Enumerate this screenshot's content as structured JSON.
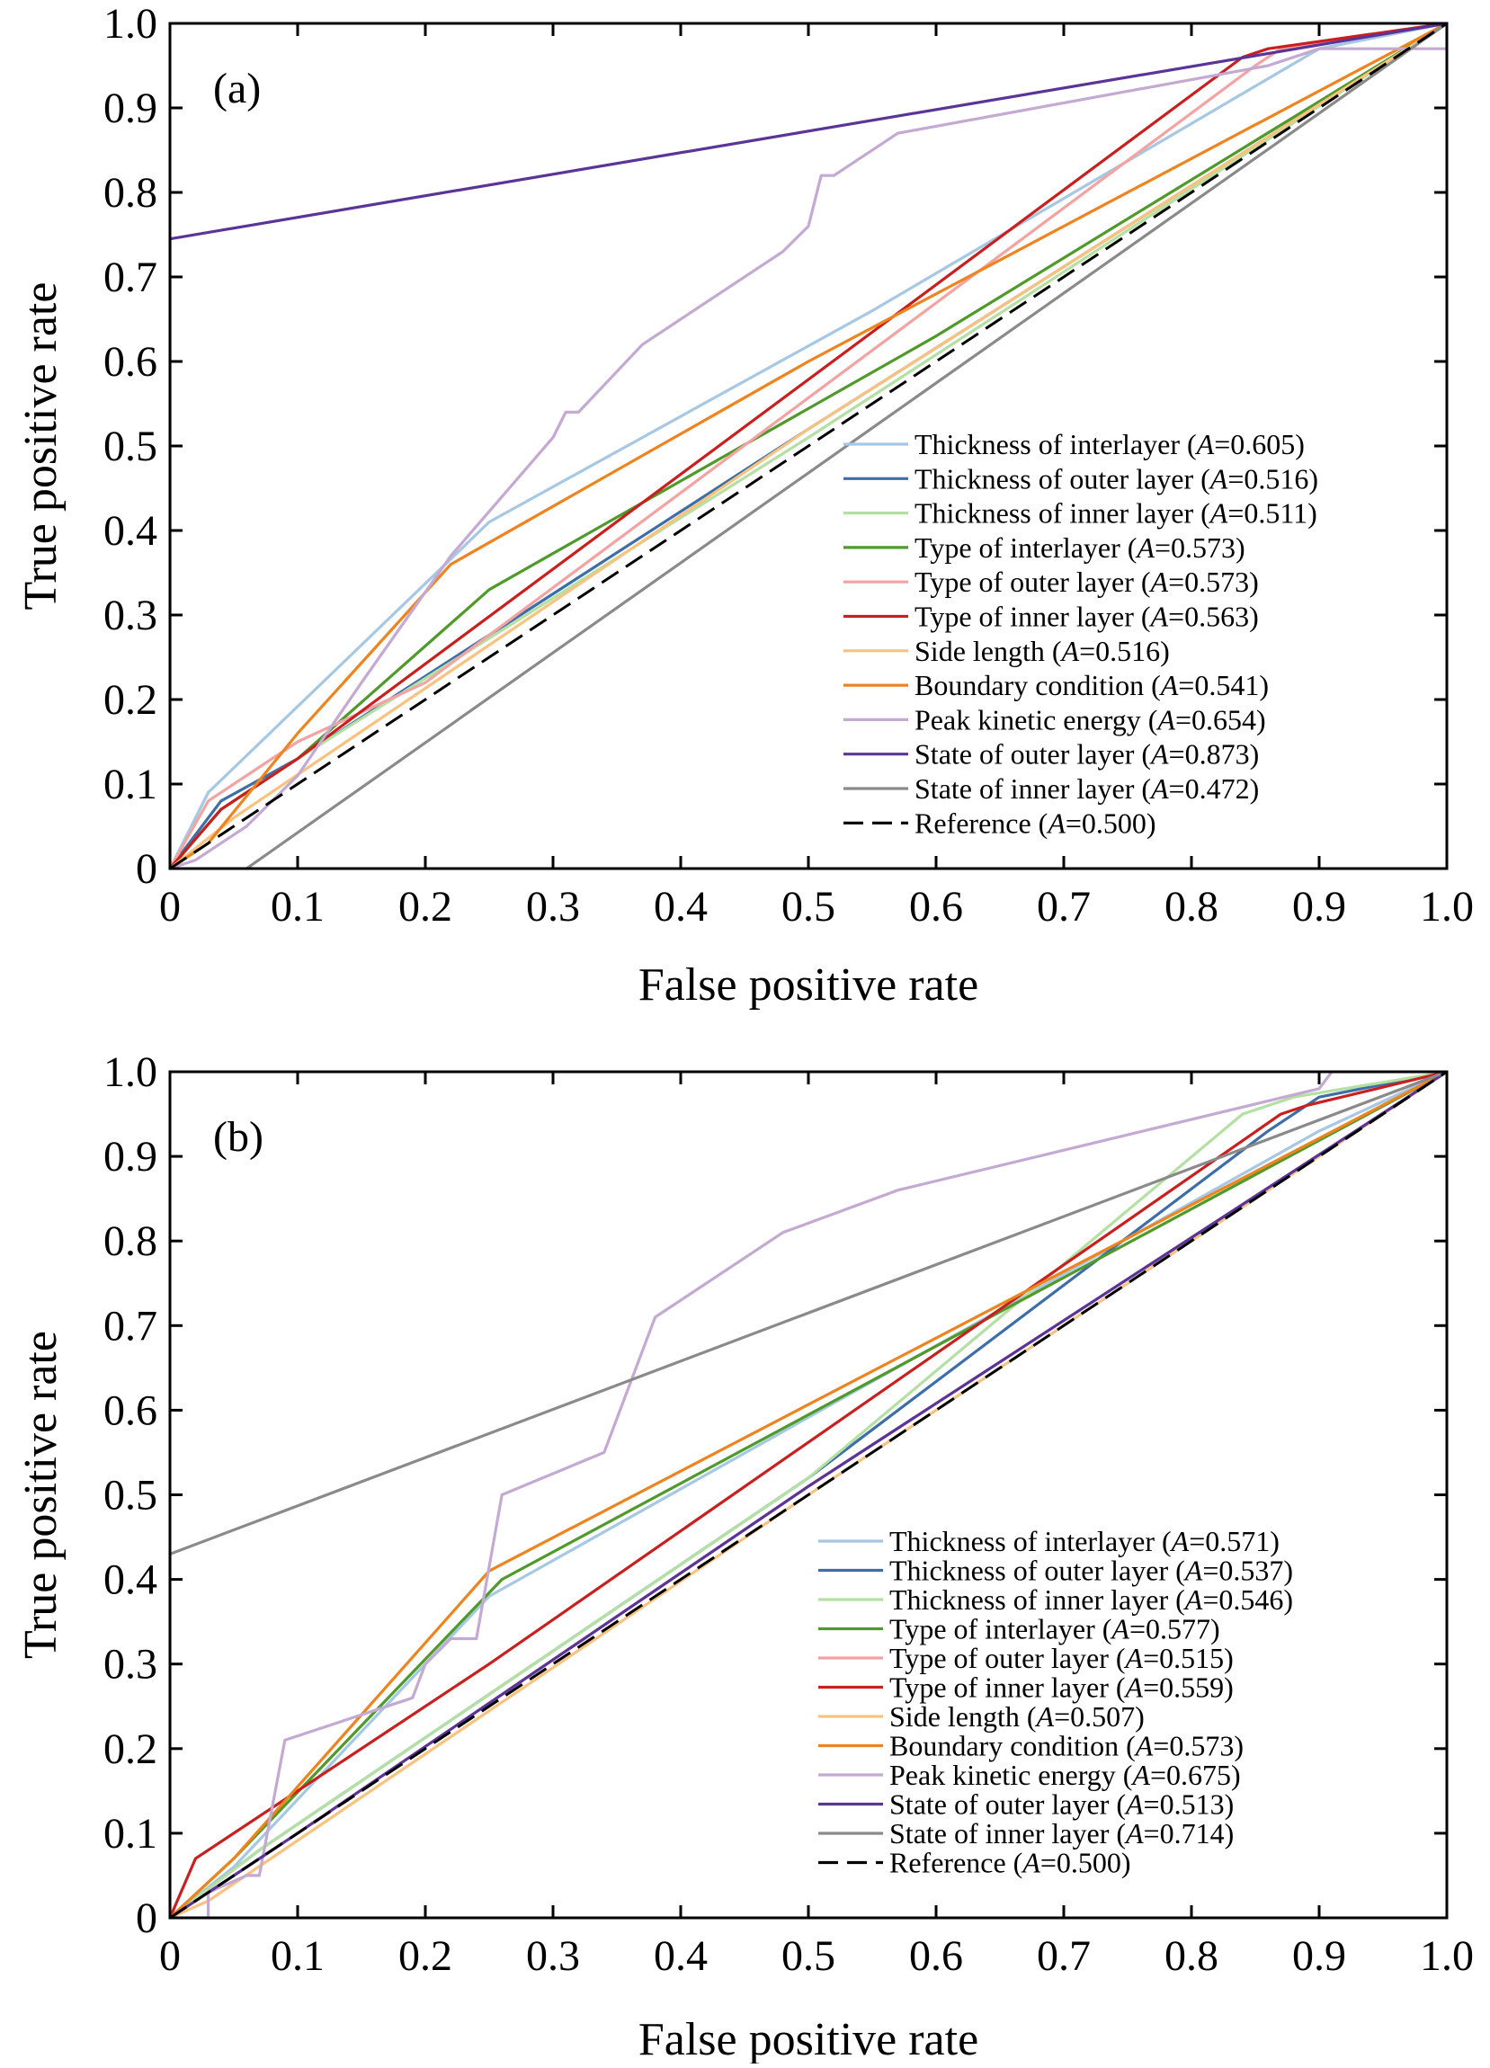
{
  "chart_data": [
    {
      "type": "line",
      "panel_label": "(a)",
      "xlabel": "False positive rate",
      "ylabel": "True positive rate",
      "xlim": [
        0,
        1
      ],
      "ylim": [
        0,
        1
      ],
      "x_ticks": [
        "0",
        "0.1",
        "0.2",
        "0.3",
        "0.4",
        "0.5",
        "0.6",
        "0.7",
        "0.8",
        "0.9",
        "1.0"
      ],
      "y_ticks": [
        "0",
        "0.1",
        "0.2",
        "0.3",
        "0.4",
        "0.5",
        "0.6",
        "0.7",
        "0.8",
        "0.9",
        "1.0"
      ],
      "grid": false,
      "legend_position": "bottom-right",
      "series": [
        {
          "name": "Thickness of interlayer",
          "area": "0.605",
          "color": "#a6c8e3",
          "points": [
            [
              0,
              0
            ],
            [
              0.03,
              0.09
            ],
            [
              0.25,
              0.41
            ],
            [
              0.55,
              0.66
            ],
            [
              0.9,
              0.97
            ],
            [
              1,
              1
            ]
          ]
        },
        {
          "name": "Thickness of outer layer",
          "area": "0.516",
          "color": "#3e6ea8",
          "points": [
            [
              0,
              0
            ],
            [
              0.04,
              0.08
            ],
            [
              0.1,
              0.13
            ],
            [
              0.5,
              0.52
            ],
            [
              1,
              1
            ]
          ]
        },
        {
          "name": "Thickness of inner layer",
          "area": "0.511",
          "color": "#b4e0a4",
          "points": [
            [
              0,
              0
            ],
            [
              0.04,
              0.07
            ],
            [
              0.1,
              0.13
            ],
            [
              0.5,
              0.51
            ],
            [
              1,
              1
            ]
          ]
        },
        {
          "name": "Type of interlayer",
          "area": "0.573",
          "color": "#4f9a2a",
          "points": [
            [
              0,
              0
            ],
            [
              0.04,
              0.07
            ],
            [
              0.1,
              0.13
            ],
            [
              0.25,
              0.33
            ],
            [
              0.6,
              0.63
            ],
            [
              1,
              1
            ]
          ]
        },
        {
          "name": "Type of outer layer",
          "area": "0.573",
          "color": "#f4a3a3",
          "points": [
            [
              0,
              0
            ],
            [
              0.03,
              0.08
            ],
            [
              0.1,
              0.15
            ],
            [
              0.2,
              0.22
            ],
            [
              0.85,
              0.95
            ],
            [
              0.87,
              0.97
            ],
            [
              1,
              1
            ]
          ]
        },
        {
          "name": "Type of inner layer",
          "area": "0.563",
          "color": "#c8201f",
          "points": [
            [
              0,
              0
            ],
            [
              0.04,
              0.07
            ],
            [
              0.1,
              0.13
            ],
            [
              0.84,
              0.96
            ],
            [
              0.86,
              0.97
            ],
            [
              1,
              1
            ]
          ]
        },
        {
          "name": "Side length",
          "area": "0.516",
          "color": "#f9c27e",
          "points": [
            [
              0,
              0
            ],
            [
              0.05,
              0.06
            ],
            [
              0.5,
              0.52
            ],
            [
              1,
              1
            ]
          ]
        },
        {
          "name": "Boundary condition",
          "area": "0.541",
          "color": "#ee8420",
          "points": [
            [
              0,
              0
            ],
            [
              0.03,
              0.03
            ],
            [
              0.1,
              0.16
            ],
            [
              0.22,
              0.36
            ],
            [
              0.5,
              0.6
            ],
            [
              1,
              1
            ]
          ]
        },
        {
          "name": "Peak kinetic energy",
          "area": "0.654",
          "color": "#c4a9d3",
          "points": [
            [
              0,
              0
            ],
            [
              0.02,
              0.01
            ],
            [
              0.06,
              0.05
            ],
            [
              0.1,
              0.11
            ],
            [
              0.15,
              0.22
            ],
            [
              0.22,
              0.37
            ],
            [
              0.3,
              0.51
            ],
            [
              0.31,
              0.54
            ],
            [
              0.32,
              0.54
            ],
            [
              0.37,
              0.62
            ],
            [
              0.48,
              0.73
            ],
            [
              0.5,
              0.76
            ],
            [
              0.51,
              0.82
            ],
            [
              0.52,
              0.82
            ],
            [
              0.57,
              0.87
            ],
            [
              0.86,
              0.95
            ],
            [
              0.9,
              0.97
            ],
            [
              1,
              0.97
            ],
            [
              1,
              1
            ]
          ]
        },
        {
          "name": "State of outer layer",
          "area": "0.873",
          "color": "#5b3497",
          "points": [
            [
              0,
              0
            ],
            [
              0,
              0.745
            ],
            [
              1,
              1
            ]
          ]
        },
        {
          "name": "State of inner layer",
          "area": "0.472",
          "color": "#8a8a8a",
          "points": [
            [
              0.06,
              0
            ],
            [
              1,
              1
            ]
          ]
        },
        {
          "name": "Reference",
          "area": "0.500",
          "color": "#000000",
          "dashed": true,
          "points": [
            [
              0,
              0
            ],
            [
              1,
              1
            ]
          ]
        }
      ]
    },
    {
      "type": "line",
      "panel_label": "(b)",
      "xlabel": "False positive rate",
      "ylabel": "True positive rate",
      "xlim": [
        0,
        1
      ],
      "ylim": [
        0,
        1
      ],
      "x_ticks": [
        "0",
        "0.1",
        "0.2",
        "0.3",
        "0.4",
        "0.5",
        "0.6",
        "0.7",
        "0.8",
        "0.9",
        "1.0"
      ],
      "y_ticks": [
        "0",
        "0.1",
        "0.2",
        "0.3",
        "0.4",
        "0.5",
        "0.6",
        "0.7",
        "0.8",
        "0.9",
        "1.0"
      ],
      "grid": false,
      "legend_position": "bottom-right",
      "series": [
        {
          "name": "Thickness of interlayer",
          "area": "0.571",
          "color": "#a6c8e3",
          "points": [
            [
              0,
              0
            ],
            [
              0.05,
              0.06
            ],
            [
              0.25,
              0.38
            ],
            [
              0.9,
              0.93
            ],
            [
              1,
              1
            ]
          ]
        },
        {
          "name": "Thickness of outer layer",
          "area": "0.537",
          "color": "#3e6ea8",
          "points": [
            [
              0,
              0
            ],
            [
              0.07,
              0.08
            ],
            [
              0.5,
              0.52
            ],
            [
              0.86,
              0.93
            ],
            [
              0.9,
              0.97
            ],
            [
              1,
              1
            ]
          ]
        },
        {
          "name": "Thickness of inner layer",
          "area": "0.546",
          "color": "#b4e0a4",
          "points": [
            [
              0,
              0
            ],
            [
              0.07,
              0.08
            ],
            [
              0.5,
              0.52
            ],
            [
              0.84,
              0.95
            ],
            [
              0.88,
              0.97
            ],
            [
              1,
              1
            ]
          ]
        },
        {
          "name": "Type of interlayer",
          "area": "0.577",
          "color": "#4f9a2a",
          "points": [
            [
              0,
              0
            ],
            [
              0.05,
              0.07
            ],
            [
              0.26,
              0.4
            ],
            [
              1,
              1
            ]
          ]
        },
        {
          "name": "Type of outer layer",
          "area": "0.515",
          "color": "#f4a3a3",
          "points": [
            [
              0,
              0
            ],
            [
              0.1,
              0.1
            ],
            [
              0.5,
              0.51
            ],
            [
              1,
              1
            ]
          ]
        },
        {
          "name": "Type of inner layer",
          "area": "0.559",
          "color": "#c8201f",
          "points": [
            [
              0,
              0
            ],
            [
              0.02,
              0.07
            ],
            [
              0.1,
              0.15
            ],
            [
              0.25,
              0.3
            ],
            [
              0.87,
              0.95
            ],
            [
              0.89,
              0.96
            ],
            [
              1,
              1
            ]
          ]
        },
        {
          "name": "Side length",
          "area": "0.507",
          "color": "#f9c27e",
          "points": [
            [
              0,
              0
            ],
            [
              0.03,
              0.02
            ],
            [
              0.5,
              0.5
            ],
            [
              1,
              1
            ]
          ]
        },
        {
          "name": "Boundary condition",
          "area": "0.573",
          "color": "#ee8420",
          "points": [
            [
              0,
              0
            ],
            [
              0.05,
              0.07
            ],
            [
              0.25,
              0.41
            ],
            [
              1,
              1
            ]
          ]
        },
        {
          "name": "Peak kinetic energy",
          "area": "0.675",
          "color": "#c4a9d3",
          "points": [
            [
              0,
              0
            ],
            [
              0.03,
              0
            ],
            [
              0.03,
              0.03
            ],
            [
              0.06,
              0.05
            ],
            [
              0.07,
              0.05
            ],
            [
              0.09,
              0.21
            ],
            [
              0.19,
              0.26
            ],
            [
              0.2,
              0.3
            ],
            [
              0.22,
              0.33
            ],
            [
              0.24,
              0.33
            ],
            [
              0.26,
              0.5
            ],
            [
              0.34,
              0.55
            ],
            [
              0.38,
              0.71
            ],
            [
              0.39,
              0.72
            ],
            [
              0.48,
              0.81
            ],
            [
              0.57,
              0.86
            ],
            [
              0.9,
              0.98
            ],
            [
              0.91,
              1
            ],
            [
              1,
              1
            ]
          ]
        },
        {
          "name": "State of outer layer",
          "area": "0.513",
          "color": "#5b3497",
          "points": [
            [
              0,
              0
            ],
            [
              0.1,
              0.1
            ],
            [
              0.5,
              0.51
            ],
            [
              1,
              1
            ]
          ]
        },
        {
          "name": "State of inner layer",
          "area": "0.714",
          "color": "#8a8a8a",
          "points": [
            [
              0,
              0
            ],
            [
              0,
              0.43
            ],
            [
              1,
              1
            ]
          ]
        },
        {
          "name": "Reference",
          "area": "0.500",
          "color": "#000000",
          "dashed": true,
          "points": [
            [
              0,
              0
            ],
            [
              1,
              1
            ]
          ]
        }
      ]
    }
  ],
  "legend_area_symbol": "A"
}
